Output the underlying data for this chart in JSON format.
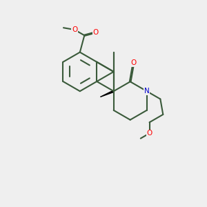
{
  "background_color": "#efefef",
  "bond_color": "#3a5a3a",
  "bond_width": 1.5,
  "atom_colors": {
    "O": "#ff0000",
    "N": "#0000cc",
    "C": "#3a5a3a"
  },
  "font_size": 7.5,
  "fig_size": [
    3.0,
    3.0
  ],
  "dpi": 100
}
